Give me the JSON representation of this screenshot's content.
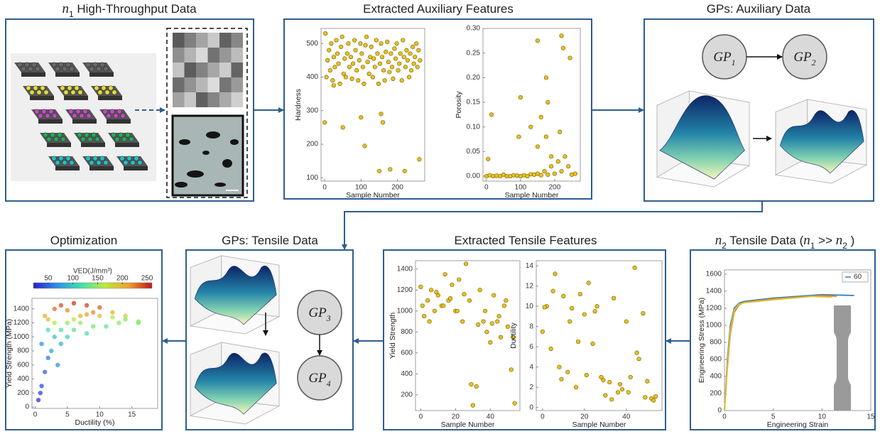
{
  "panels": [
    {
      "title": [
        {
          "math": "n",
          "sub": "1"
        },
        {
          "text": " High-Throughput Data"
        }
      ]
    },
    {
      "title": [
        {
          "text": "Extracted Auxiliary Features"
        }
      ]
    },
    {
      "title": [
        {
          "text": "GPs: Auxiliary Data"
        }
      ]
    },
    {
      "title": [
        {
          "text": "Optimization"
        }
      ]
    },
    {
      "title": [
        {
          "text": "GPs: Tensile Data"
        }
      ]
    },
    {
      "title": [
        {
          "text": "Extracted Tensile Features"
        }
      ]
    },
    {
      "title": [
        {
          "math": "n",
          "sub": "2"
        },
        {
          "text": " Tensile Data ("
        },
        {
          "math": "n",
          "sub": "1"
        },
        {
          "text": " >> "
        },
        {
          "math": "n",
          "sub": "2"
        },
        {
          "text": " )"
        }
      ]
    }
  ],
  "nodes": [
    {
      "math": "GP",
      "sub": "1"
    },
    {
      "math": "GP",
      "sub": "2"
    },
    {
      "math": "GP",
      "sub": "3"
    },
    {
      "math": "GP",
      "sub": "4"
    }
  ],
  "chart_data": [
    {
      "type": "scatter",
      "xlabel": "Sample Number",
      "ylabel": "Hardness",
      "color": "#e8c21a",
      "edge": "#6b5a10",
      "xlim": [
        -10,
        275
      ],
      "ylim": [
        90,
        545
      ],
      "xticks": [
        0,
        100,
        200
      ],
      "yticks": [
        100,
        200,
        300,
        400,
        500
      ],
      "x": [
        2,
        5,
        8,
        12,
        15,
        18,
        22,
        25,
        28,
        32,
        35,
        38,
        42,
        45,
        48,
        52,
        55,
        58,
        62,
        65,
        68,
        72,
        75,
        78,
        82,
        85,
        88,
        92,
        95,
        98,
        102,
        105,
        108,
        112,
        115,
        118,
        122,
        125,
        128,
        132,
        135,
        138,
        142,
        145,
        148,
        152,
        155,
        158,
        162,
        165,
        168,
        172,
        175,
        178,
        182,
        185,
        188,
        192,
        195,
        198,
        202,
        205,
        208,
        212,
        215,
        218,
        222,
        225,
        228,
        232,
        235,
        238,
        242,
        245,
        248,
        252,
        255,
        258,
        262,
        0,
        25,
        50,
        100,
        110,
        150,
        155,
        160,
        180,
        220,
        260
      ],
      "values": [
        530,
        400,
        450,
        480,
        420,
        500,
        390,
        460,
        430,
        510,
        470,
        440,
        380,
        490,
        520,
        410,
        455,
        400,
        470,
        500,
        430,
        460,
        395,
        440,
        510,
        480,
        420,
        390,
        450,
        500,
        470,
        430,
        380,
        495,
        520,
        445,
        410,
        460,
        490,
        400,
        455,
        430,
        510,
        470,
        380,
        440,
        500,
        460,
        420,
        390,
        475,
        505,
        445,
        415,
        470,
        430,
        395,
        485,
        455,
        500,
        420,
        440,
        470,
        390,
        510,
        460,
        430,
        480,
        450,
        400,
        470,
        420,
        490,
        440,
        460,
        500,
        430,
        480,
        450,
        265,
        375,
        250,
        280,
        195,
        120,
        290,
        265,
        125,
        120,
        155
      ]
    },
    {
      "type": "scatter",
      "xlabel": "Sample Number",
      "ylabel": "Porosity",
      "color": "#e8c21a",
      "edge": "#6b5a10",
      "xlim": [
        -10,
        275
      ],
      "ylim": [
        -0.01,
        0.3
      ],
      "xticks": [
        0,
        100,
        200
      ],
      "yticks": [
        {
          "value": 0,
          "label": "0.00"
        },
        {
          "value": 0.05,
          "label": "0.05"
        },
        {
          "value": 0.1,
          "label": "0.10"
        },
        {
          "value": 0.15,
          "label": "0.15"
        },
        {
          "value": 0.2,
          "label": "0.20"
        },
        {
          "value": 0.25,
          "label": "0.25"
        },
        {
          "value": 0.3,
          "label": "0.30"
        }
      ],
      "x": [
        0,
        10,
        20,
        30,
        40,
        50,
        60,
        70,
        80,
        90,
        100,
        110,
        120,
        130,
        140,
        150,
        160,
        170,
        180,
        190,
        200,
        210,
        220,
        230,
        240,
        250,
        260,
        5,
        15,
        95,
        100,
        130,
        150,
        160,
        175,
        180,
        190,
        215,
        225,
        245,
        150,
        175,
        220
      ],
      "values": [
        0,
        0.002,
        0,
        0.001,
        0,
        0.003,
        0,
        0,
        0.002,
        0.001,
        0,
        0.002,
        0,
        0.004,
        0.003,
        0.005,
        0.002,
        0.01,
        0.003,
        0.02,
        0.005,
        0.03,
        0.01,
        0.04,
        0.02,
        0.003,
        0.005,
        0.035,
        0.125,
        0.08,
        0.16,
        0.1,
        0.06,
        0.12,
        0.2,
        0.15,
        0.04,
        0.09,
        0.26,
        0.24,
        0.275,
        0.08,
        0.285
      ]
    },
    {
      "type": "scatter",
      "xlabel": "Sample Number",
      "ylabel": "Yield Strength",
      "color": "#e8c21a",
      "edge": "#6b5a10",
      "xlim": [
        -3,
        57
      ],
      "ylim": [
        50,
        1480
      ],
      "xticks": [
        0,
        20,
        40
      ],
      "yticks": [
        200,
        400,
        600,
        800,
        1000,
        1200,
        1400
      ],
      "x": [
        0,
        2,
        4,
        6,
        8,
        10,
        12,
        14,
        16,
        18,
        20,
        22,
        24,
        26,
        28,
        30,
        32,
        34,
        36,
        38,
        40,
        42,
        44,
        46,
        48,
        50,
        52,
        54,
        1,
        5,
        9,
        13,
        17,
        21,
        25,
        29,
        33,
        37,
        41,
        45,
        49,
        53
      ],
      "values": [
        1230,
        950,
        1100,
        1200,
        1000,
        1150,
        1050,
        1350,
        1100,
        1250,
        1000,
        1300,
        900,
        1450,
        1100,
        100,
        280,
        1200,
        900,
        800,
        700,
        1150,
        900,
        750,
        1050,
        850,
        440,
        120,
        1050,
        900,
        1180,
        1050,
        1120,
        1000,
        1160,
        300,
        870,
        1000,
        880,
        950,
        1100,
        750
      ]
    },
    {
      "type": "scatter",
      "xlabel": "Sample Number",
      "ylabel": "Ductility",
      "color": "#e8c21a",
      "edge": "#6b5a10",
      "xlim": [
        -3,
        57
      ],
      "ylim": [
        -0.3,
        14.5
      ],
      "xticks": [
        0,
        20,
        40
      ],
      "yticks": [
        0,
        2,
        4,
        6,
        8,
        10,
        12,
        14
      ],
      "x": [
        0,
        2,
        4,
        6,
        8,
        10,
        12,
        14,
        16,
        18,
        20,
        22,
        24,
        26,
        28,
        30,
        32,
        34,
        36,
        38,
        40,
        42,
        44,
        46,
        48,
        50,
        52,
        54,
        1,
        5,
        9,
        13,
        17,
        21,
        25,
        29,
        33,
        37,
        41,
        45,
        49,
        53
      ],
      "values": [
        7.5,
        10,
        5.8,
        13.2,
        4,
        11,
        3.5,
        9.8,
        2,
        11.2,
        9.2,
        12.3,
        6.3,
        10,
        3,
        1.2,
        2.5,
        10.8,
        1.5,
        1.8,
        8.5,
        3,
        13.8,
        4.8,
        9.3,
        2.6,
        0.9,
        1.1,
        9.9,
        11.5,
        2.8,
        8.5,
        6.5,
        3.2,
        9.5,
        2.7,
        0.8,
        2.3,
        1.5,
        5.4,
        1,
        0.7
      ]
    },
    {
      "type": "scatter",
      "xlabel": "Ductility (%)",
      "ylabel": "Yield Strength (MPa)",
      "xlim": [
        -0.5,
        19
      ],
      "ylim": [
        -20,
        1550
      ],
      "xticks": [
        0,
        5,
        10,
        15
      ],
      "yticks": [
        0,
        200,
        400,
        600,
        800,
        1000,
        1200,
        1400
      ],
      "colormap": [
        "#2a1fc8",
        "#2f8fe8",
        "#3fe0b0",
        "#b8ec3a",
        "#f0a030",
        "#c01818"
      ],
      "colorbar": {
        "label": "VED(J/mm³)",
        "lim": [
          20,
          260
        ],
        "ticks": [
          50,
          100,
          150,
          200,
          250
        ]
      },
      "x": [
        0.5,
        1,
        1.5,
        2,
        1,
        0.8,
        2.5,
        3,
        4,
        3.5,
        5,
        6,
        7,
        8,
        9,
        10,
        12,
        14,
        16,
        4,
        6,
        8,
        10,
        12,
        14,
        16,
        3,
        5,
        7,
        9,
        11,
        2,
        3,
        4,
        5,
        1.5,
        2,
        6,
        8,
        13
      ],
      "values": [
        100,
        300,
        500,
        700,
        900,
        200,
        800,
        1000,
        1100,
        600,
        1200,
        1250,
        1300,
        1320,
        1350,
        1300,
        1280,
        1250,
        1200,
        1450,
        1480,
        1450,
        1420,
        1350,
        1300,
        1220,
        1400,
        1380,
        1200,
        1150,
        1150,
        1100,
        1200,
        900,
        1000,
        1300,
        1250,
        1100,
        1050,
        1200
      ],
      "color_values": [
        30,
        40,
        50,
        60,
        70,
        35,
        80,
        100,
        120,
        70,
        150,
        170,
        200,
        210,
        220,
        190,
        160,
        140,
        130,
        240,
        250,
        245,
        235,
        200,
        180,
        150,
        230,
        220,
        150,
        140,
        130,
        120,
        160,
        90,
        110,
        200,
        190,
        130,
        120,
        150
      ]
    },
    {
      "type": "line",
      "xlabel": "Engineering Strain",
      "ylabel": "Engineering Stress (MPa)",
      "xlim": [
        0,
        15
      ],
      "ylim": [
        0,
        1650
      ],
      "xticks": [
        0,
        5,
        10,
        15
      ],
      "yticks": [
        0,
        200,
        400,
        600,
        800,
        1000,
        1200,
        1400,
        1600
      ],
      "series": [
        {
          "name": "60",
          "color": "#2f7fc0",
          "x": [
            0,
            0.3,
            0.6,
            1,
            1.5,
            2,
            5,
            10,
            13.3
          ],
          "values": [
            0,
            600,
            1000,
            1200,
            1260,
            1280,
            1320,
            1360,
            1350
          ]
        },
        {
          "color": "#e8862a",
          "x": [
            0,
            0.3,
            0.6,
            1,
            1.5,
            2,
            5,
            10,
            11.5
          ],
          "values": [
            0,
            500,
            900,
            1150,
            1240,
            1270,
            1310,
            1350,
            1340
          ]
        },
        {
          "color": "#d8c030",
          "x": [
            0,
            0.3,
            0.6,
            1,
            1.5,
            2,
            5,
            9,
            11
          ],
          "values": [
            0,
            550,
            950,
            1180,
            1250,
            1265,
            1300,
            1340,
            1330
          ]
        }
      ]
    }
  ]
}
